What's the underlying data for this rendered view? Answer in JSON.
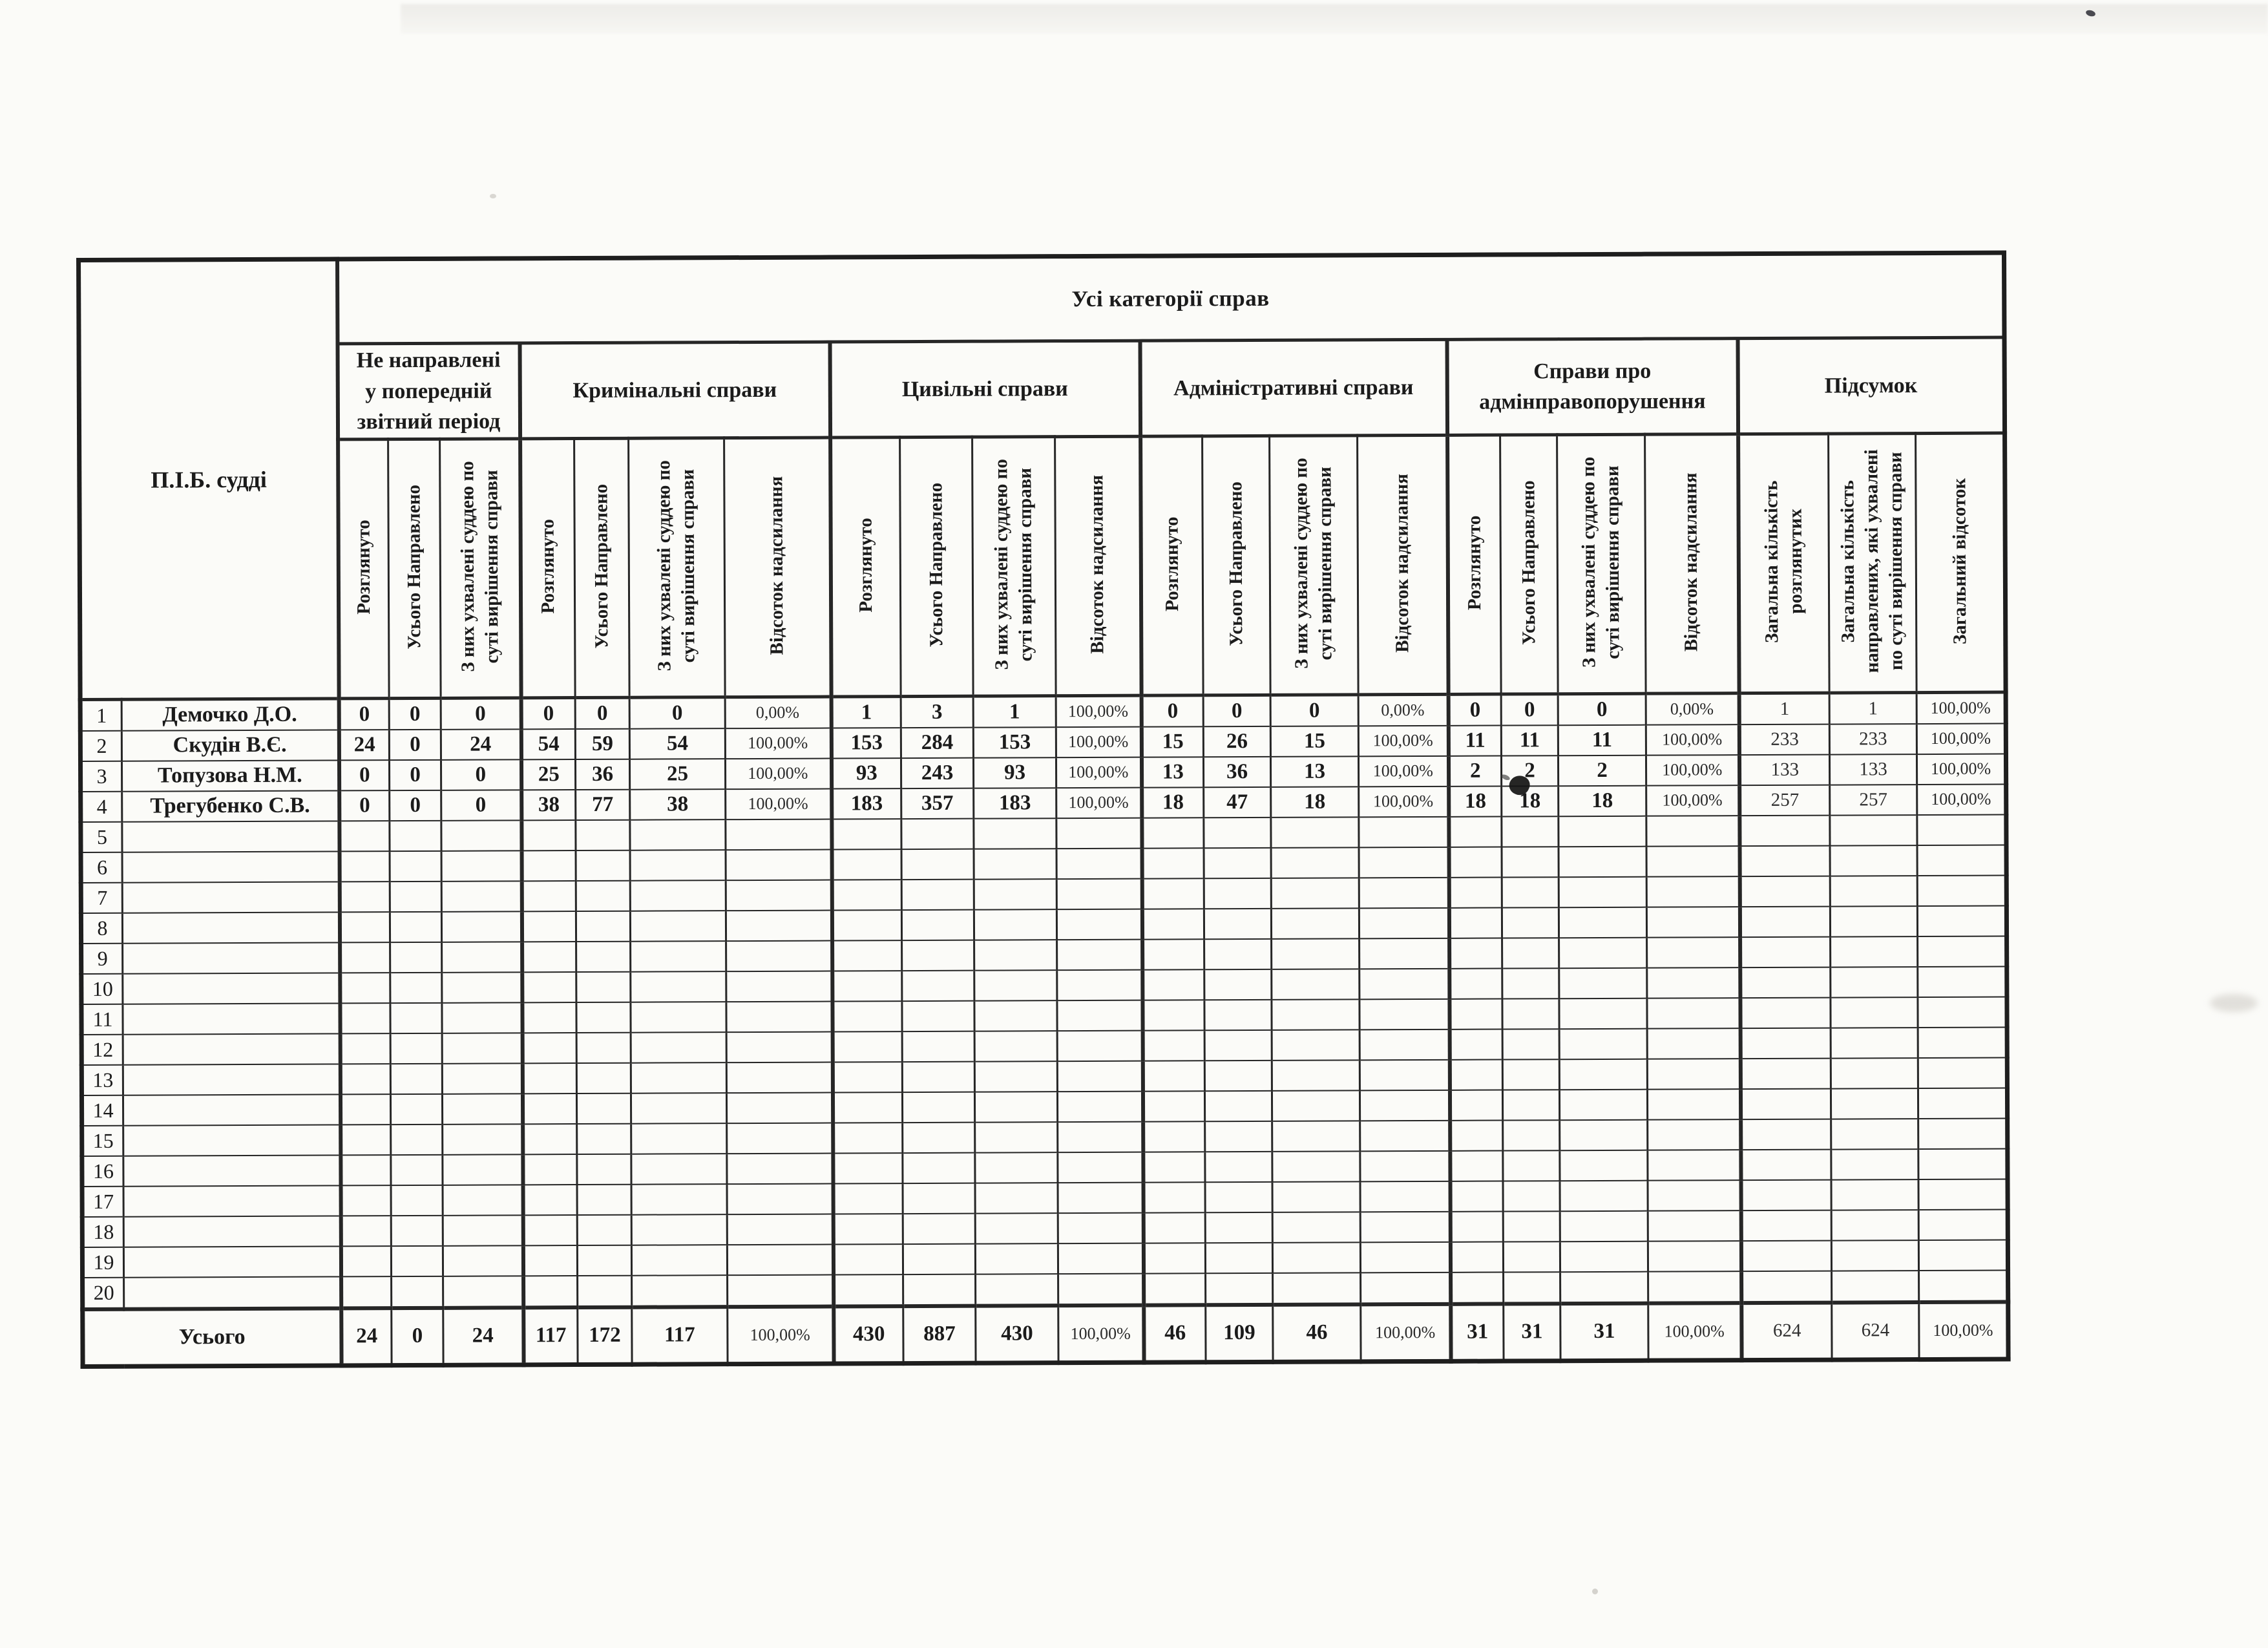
{
  "document": {
    "title": "Усі категорії справ",
    "judge_header": "П.І.Б. судді",
    "totals_label": "Усього",
    "groups": [
      {
        "label": "Не направлені у попередній звітний період",
        "columns": [
          {
            "label": "Розглянуто",
            "type": "count"
          },
          {
            "label": "Усього Направлено",
            "type": "count"
          },
          {
            "label": "З них ухвалені суддею по суті вирішення справи",
            "type": "count"
          }
        ]
      },
      {
        "label": "Кримінальні справи",
        "columns": [
          {
            "label": "Розглянуто",
            "type": "count"
          },
          {
            "label": "Усього Направлено",
            "type": "count"
          },
          {
            "label": "З них ухвалені суддею по суті вирішення справи",
            "type": "count"
          },
          {
            "label": "Відсоток надсилання",
            "type": "percent"
          }
        ]
      },
      {
        "label": "Цивільні справи",
        "columns": [
          {
            "label": "Розглянуто",
            "type": "count"
          },
          {
            "label": "Усього Направлено",
            "type": "count"
          },
          {
            "label": "З них ухвалені суддею по суті вирішення справи",
            "type": "count"
          },
          {
            "label": "Відсоток надсилання",
            "type": "percent"
          }
        ]
      },
      {
        "label": "Адміністративні справи",
        "columns": [
          {
            "label": "Розглянуто",
            "type": "count"
          },
          {
            "label": "Усього Направлено",
            "type": "count"
          },
          {
            "label": "З них ухвалені суддею по суті вирішення справи",
            "type": "count"
          },
          {
            "label": "Відсоток надсилання",
            "type": "percent"
          }
        ]
      },
      {
        "label": "Справи про адмінправопорушення",
        "columns": [
          {
            "label": "Розглянуто",
            "type": "count"
          },
          {
            "label": "Усього Направлено",
            "type": "count"
          },
          {
            "label": "З них ухвалені суддею по суті вирішення справи",
            "type": "count"
          },
          {
            "label": "Відсоток надсилання",
            "type": "percent"
          }
        ]
      },
      {
        "label": "Підсумок",
        "columns": [
          {
            "label": "Загальна кількість розглянутих",
            "type": "count-light"
          },
          {
            "label": "Загальна кількість направлених, які ухвалені по суті вирішення справи",
            "type": "count-light"
          },
          {
            "label": "Загальний відсоток",
            "type": "percent"
          }
        ]
      }
    ],
    "rows": [
      {
        "num": "1",
        "name": "Демочко Д.О.",
        "values": [
          "0",
          "0",
          "0",
          "0",
          "0",
          "0",
          "0,00%",
          "1",
          "3",
          "1",
          "100,00%",
          "0",
          "0",
          "0",
          "0,00%",
          "0",
          "0",
          "0",
          "0,00%",
          "1",
          "1",
          "100,00%"
        ]
      },
      {
        "num": "2",
        "name": "Скудін В.Є.",
        "values": [
          "24",
          "0",
          "24",
          "54",
          "59",
          "54",
          "100,00%",
          "153",
          "284",
          "153",
          "100,00%",
          "15",
          "26",
          "15",
          "100,00%",
          "11",
          "11",
          "11",
          "100,00%",
          "233",
          "233",
          "100,00%"
        ]
      },
      {
        "num": "3",
        "name": "Топузова Н.М.",
        "values": [
          "0",
          "0",
          "0",
          "25",
          "36",
          "25",
          "100,00%",
          "93",
          "243",
          "93",
          "100,00%",
          "13",
          "36",
          "13",
          "100,00%",
          "2",
          "2",
          "2",
          "100,00%",
          "133",
          "133",
          "100,00%"
        ]
      },
      {
        "num": "4",
        "name": "Трегубенко С.В.",
        "values": [
          "0",
          "0",
          "0",
          "38",
          "77",
          "38",
          "100,00%",
          "183",
          "357",
          "183",
          "100,00%",
          "18",
          "47",
          "18",
          "100,00%",
          "18",
          "18",
          "18",
          "100,00%",
          "257",
          "257",
          "100,00%"
        ]
      },
      {
        "num": "5",
        "name": "",
        "values": []
      },
      {
        "num": "6",
        "name": "",
        "values": []
      },
      {
        "num": "7",
        "name": "",
        "values": []
      },
      {
        "num": "8",
        "name": "",
        "values": []
      },
      {
        "num": "9",
        "name": "",
        "values": []
      },
      {
        "num": "10",
        "name": "",
        "values": []
      },
      {
        "num": "11",
        "name": "",
        "values": []
      },
      {
        "num": "12",
        "name": "",
        "values": []
      },
      {
        "num": "13",
        "name": "",
        "values": []
      },
      {
        "num": "14",
        "name": "",
        "values": []
      },
      {
        "num": "15",
        "name": "",
        "values": []
      },
      {
        "num": "16",
        "name": "",
        "values": []
      },
      {
        "num": "17",
        "name": "",
        "values": []
      },
      {
        "num": "18",
        "name": "",
        "values": []
      },
      {
        "num": "19",
        "name": "",
        "values": []
      },
      {
        "num": "20",
        "name": "",
        "values": []
      }
    ],
    "totals_values": [
      "24",
      "0",
      "24",
      "117",
      "172",
      "117",
      "100,00%",
      "430",
      "887",
      "430",
      "100,00%",
      "46",
      "109",
      "46",
      "100,00%",
      "31",
      "31",
      "31",
      "100,00%",
      "624",
      "624",
      "100,00%"
    ]
  }
}
